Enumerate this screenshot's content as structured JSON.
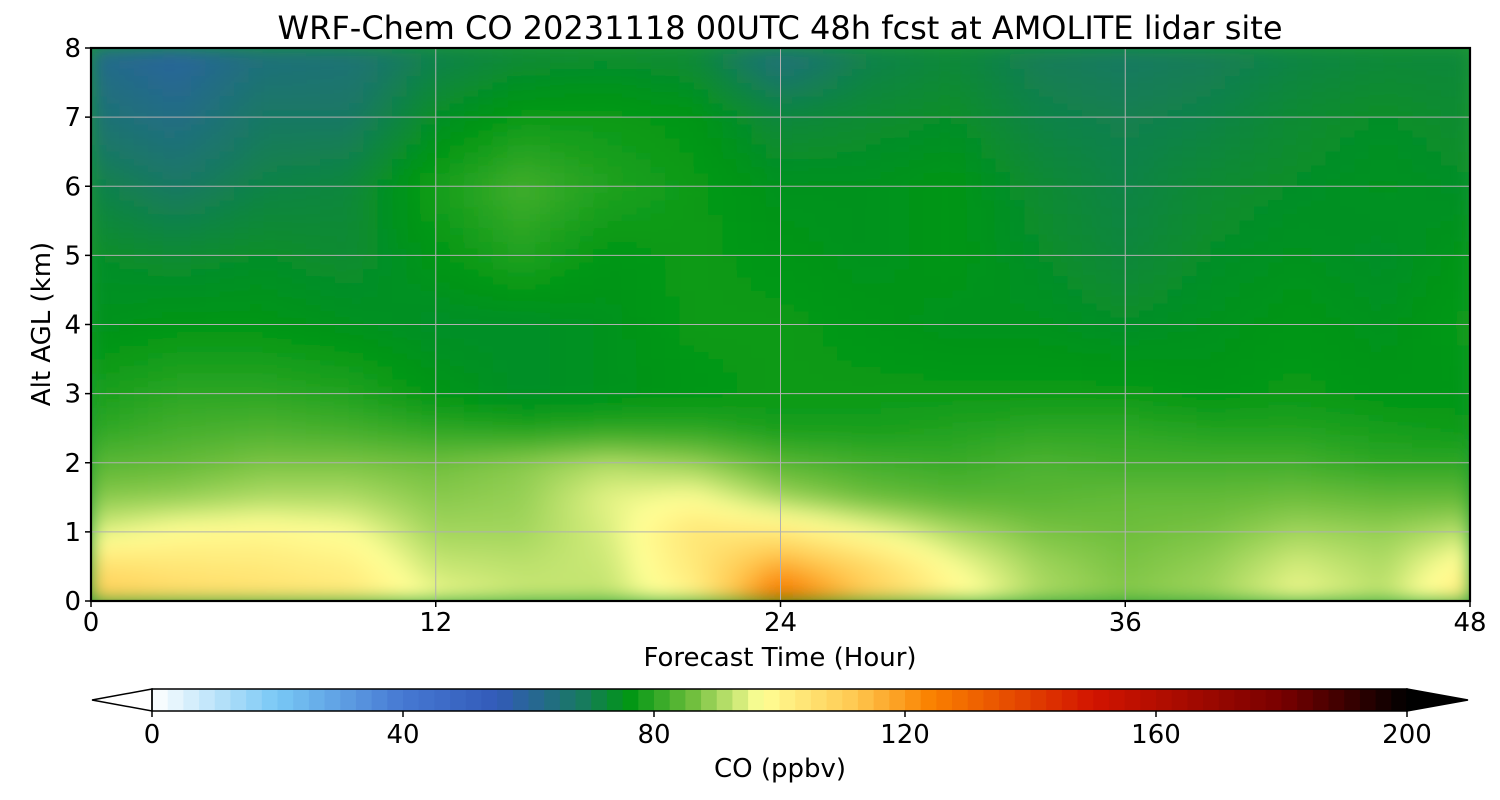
{
  "chart_data": {
    "type": "heatmap",
    "title": "WRF-Chem CO  20231118 00UTC 48h fcst at AMOLITE lidar site",
    "xlabel": "Forecast Time (Hour)",
    "ylabel": "Alt AGL (km)",
    "xlim": [
      0,
      48
    ],
    "ylim": [
      0,
      8
    ],
    "xticks": [
      0,
      12,
      24,
      36,
      48
    ],
    "yticks": [
      0,
      1,
      2,
      3,
      4,
      5,
      6,
      7,
      8
    ],
    "grid": true,
    "colorbar": {
      "label": "CO  (ppbv)",
      "range": [
        0,
        200
      ],
      "ticks": [
        0,
        40,
        80,
        120,
        160,
        200
      ],
      "extend": "both",
      "orientation": "horizontal"
    },
    "x": [
      0,
      3,
      6,
      9,
      12,
      15,
      18,
      21,
      24,
      27,
      30,
      33,
      36,
      39,
      42,
      45,
      48
    ],
    "y": [
      0,
      0.5,
      1,
      1.5,
      2,
      2.5,
      3,
      4,
      5,
      6,
      7,
      8
    ],
    "z": [
      [
        112,
        108,
        106,
        104,
        96,
        93,
        92,
        100,
        130,
        112,
        100,
        91,
        88,
        90,
        96,
        92,
        104
      ],
      [
        106,
        104,
        103,
        101,
        93,
        92,
        93,
        103,
        118,
        108,
        97,
        90,
        87,
        89,
        94,
        91,
        100
      ],
      [
        94,
        98,
        99,
        97,
        90,
        90,
        94,
        104,
        103,
        97,
        91,
        87,
        86,
        87,
        90,
        89,
        92
      ],
      [
        88,
        89,
        91,
        91,
        88,
        89,
        95,
        97,
        90,
        86,
        84,
        84,
        85,
        85,
        86,
        85,
        85
      ],
      [
        84,
        85,
        87,
        87,
        86,
        88,
        91,
        89,
        84,
        82,
        81,
        83,
        82,
        82,
        82,
        80,
        80
      ],
      [
        80,
        82,
        83,
        82,
        80,
        79,
        80,
        80,
        78,
        78,
        79,
        80,
        80,
        79,
        79,
        78,
        77
      ],
      [
        78,
        80,
        80,
        79,
        76,
        74,
        75,
        76,
        77,
        77,
        77,
        77,
        77,
        76,
        77,
        76,
        76
      ],
      [
        75,
        76,
        76,
        75,
        74,
        74,
        75,
        77,
        77,
        76,
        75,
        75,
        74,
        75,
        76,
        75,
        77
      ],
      [
        74,
        73,
        74,
        73,
        76,
        79,
        76,
        77,
        76,
        75,
        76,
        74,
        72,
        74,
        75,
        74,
        76
      ],
      [
        71,
        68,
        71,
        72,
        78,
        82,
        79,
        77,
        75,
        75,
        76,
        73,
        71,
        73,
        74,
        75,
        74
      ],
      [
        66,
        63,
        68,
        68,
        74,
        77,
        77,
        76,
        72,
        73,
        74,
        71,
        70,
        71,
        73,
        74,
        73
      ],
      [
        62,
        59,
        64,
        65,
        70,
        72,
        73,
        72,
        64,
        70,
        72,
        69,
        68,
        69,
        71,
        72,
        72
      ]
    ]
  }
}
